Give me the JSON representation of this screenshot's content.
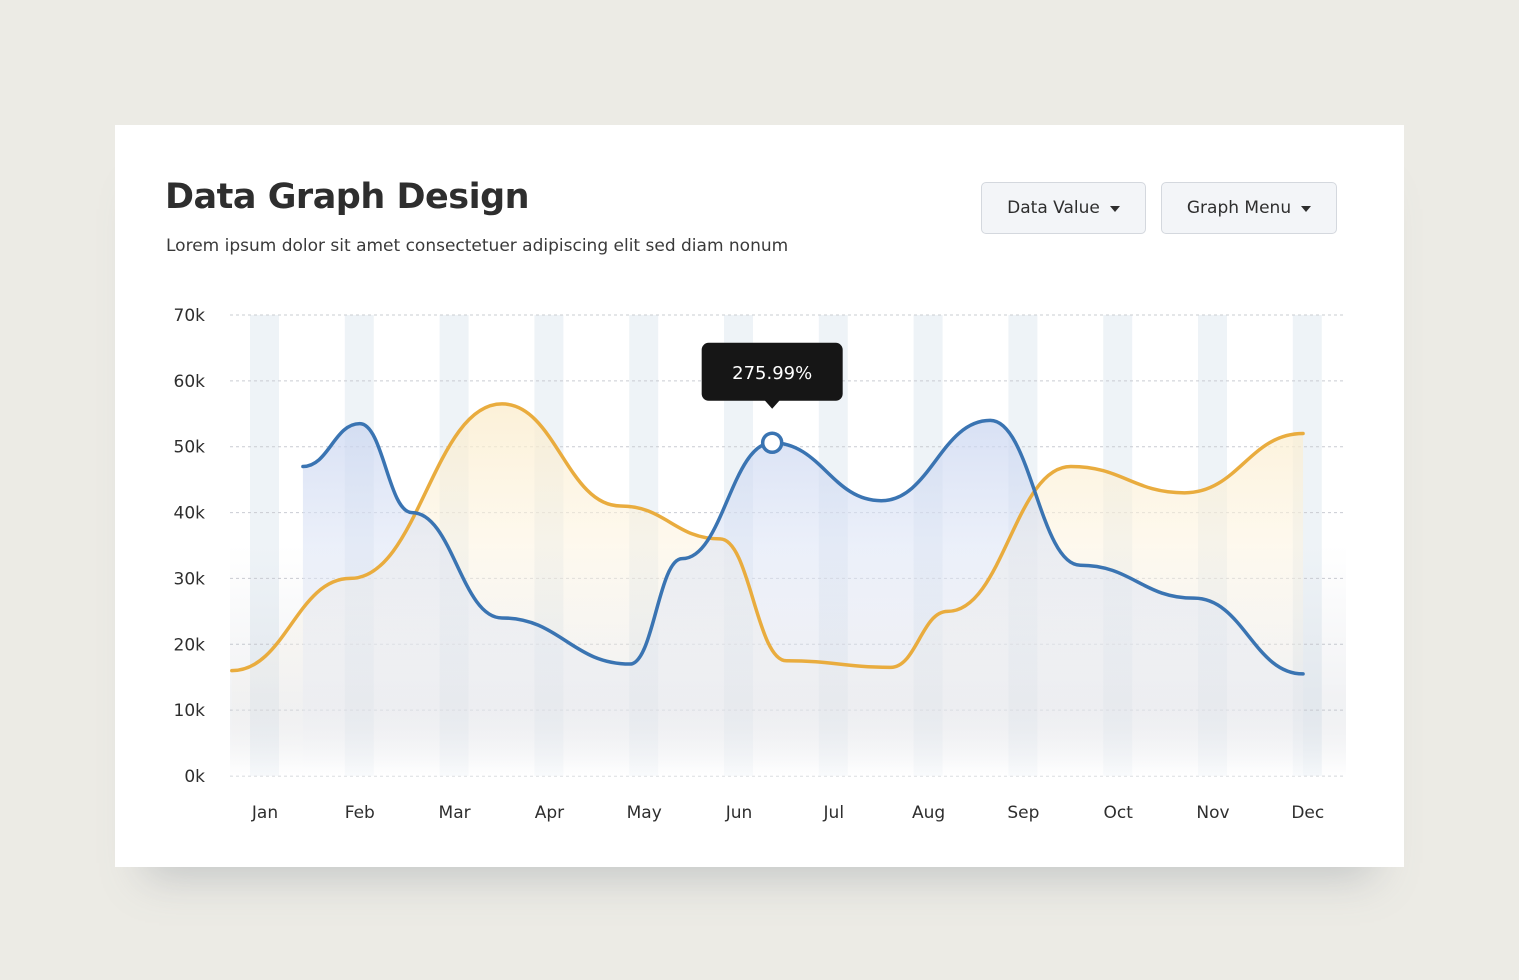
{
  "header": {
    "title": "Data Graph Design",
    "subtitle": "Lorem ipsum dolor sit amet consectetuer adipiscing elit sed diam nonum"
  },
  "controls": {
    "data_value_label": "Data Value",
    "graph_menu_label": "Graph Menu"
  },
  "icons": {
    "dropdown": "caret-down-icon"
  },
  "colors": {
    "blue_series": "#3a74b2",
    "orange_series": "#e9ac3e",
    "tooltip_bg": "#161616",
    "column_band": "#eef3f7"
  },
  "chart_data": {
    "type": "area",
    "categories": [
      "Jan",
      "Feb",
      "Mar",
      "Apr",
      "May",
      "Jun",
      "Jul",
      "Aug",
      "Sep",
      "Oct",
      "Nov",
      "Dec"
    ],
    "y_ticks": [
      "0k",
      "10k",
      "20k",
      "30k",
      "40k",
      "50k",
      "60k",
      "70k"
    ],
    "ylim": [
      0,
      70000
    ],
    "grid": true,
    "series": [
      {
        "color": "#3a74b2",
        "points": [
          {
            "x": 0.4,
            "y": 47000
          },
          {
            "x": 1.0,
            "y": 53500
          },
          {
            "x": 1.55,
            "y": 40000
          },
          {
            "x": 2.5,
            "y": 24000
          },
          {
            "x": 3.85,
            "y": 17000
          },
          {
            "x": 4.4,
            "y": 33000
          },
          {
            "x": 5.35,
            "y": 50600
          },
          {
            "x": 6.5,
            "y": 41800
          },
          {
            "x": 7.65,
            "y": 54000
          },
          {
            "x": 8.6,
            "y": 32000
          },
          {
            "x": 9.8,
            "y": 27000
          },
          {
            "x": 10.95,
            "y": 15500
          }
        ]
      },
      {
        "color": "#e9ac3e",
        "points": [
          {
            "x": -0.35,
            "y": 16000
          },
          {
            "x": 0.9,
            "y": 30000
          },
          {
            "x": 2.5,
            "y": 56500
          },
          {
            "x": 3.75,
            "y": 41000
          },
          {
            "x": 4.8,
            "y": 36000
          },
          {
            "x": 5.5,
            "y": 17500
          },
          {
            "x": 6.6,
            "y": 16500
          },
          {
            "x": 7.2,
            "y": 25000
          },
          {
            "x": 8.5,
            "y": 47000
          },
          {
            "x": 9.7,
            "y": 43000
          },
          {
            "x": 10.95,
            "y": 52000
          }
        ]
      }
    ],
    "tooltip": {
      "text": "275.99%",
      "x": 5.35,
      "y": 50600
    }
  }
}
